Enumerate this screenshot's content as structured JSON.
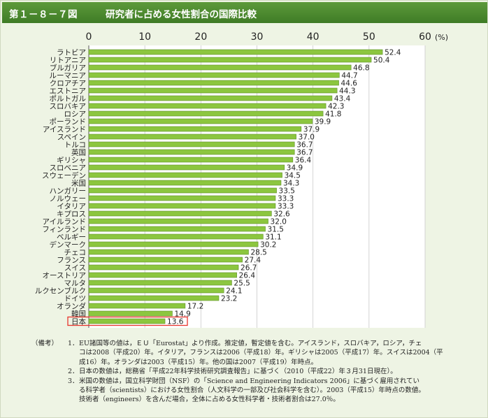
{
  "figure": {
    "number": "第１－８－７図",
    "title": "研究者に占める女性割合の国際比較"
  },
  "chart_data": {
    "type": "bar",
    "orientation": "horizontal",
    "unit_label": "(%)",
    "xlim": [
      0,
      60
    ],
    "ticks": [
      "0",
      "10",
      "20",
      "30",
      "40",
      "50",
      "60"
    ],
    "grid": true,
    "bar_color": "#8cc63f",
    "highlight_color": "#e8352e",
    "highlight_category": "日本",
    "categories": [
      "ラトビア",
      "リトアニア",
      "ブルガリア",
      "ルーマニア",
      "クロアチア",
      "エストニア",
      "ポルトガル",
      "スロバキア",
      "ロシア",
      "ポーランド",
      "アイスランド",
      "スペイン",
      "トルコ",
      "英国",
      "ギリシャ",
      "スロベニア",
      "スウェーデン",
      "米国",
      "ハンガリー",
      "ノルウェー",
      "イタリア",
      "キプロス",
      "アイルランド",
      "フィンランド",
      "ベルギー",
      "デンマーク",
      "チェコ",
      "フランス",
      "スイス",
      "オーストリア",
      "マルタ",
      "ルクセンブルク",
      "ドイツ",
      "オランダ",
      "韓国",
      "日本"
    ],
    "values": [
      52.4,
      50.4,
      46.8,
      44.7,
      44.6,
      44.3,
      43.4,
      42.3,
      41.8,
      39.9,
      37.9,
      37.0,
      36.7,
      36.7,
      36.4,
      34.9,
      34.5,
      34.3,
      33.5,
      33.3,
      33.3,
      32.6,
      32.0,
      31.5,
      31.1,
      30.2,
      28.5,
      27.4,
      26.7,
      26.4,
      25.5,
      24.1,
      23.2,
      17.2,
      14.9,
      13.6
    ],
    "value_labels": [
      "52.4",
      "50.4",
      "46.8",
      "44.7",
      "44.6",
      "44.3",
      "43.4",
      "42.3",
      "41.8",
      "39.9",
      "37.9",
      "37.0",
      "36.7",
      "36.7",
      "36.4",
      "34.9",
      "34.5",
      "34.3",
      "33.5",
      "33.3",
      "33.3",
      "32.6",
      "32.0",
      "31.5",
      "31.1",
      "30.2",
      "28.5",
      "27.4",
      "26.7",
      "26.4",
      "25.5",
      "24.1",
      "23.2",
      "17.2",
      "14.9",
      "13.6"
    ]
  },
  "notes": {
    "heading": "（備考）",
    "items": [
      {
        "num": "1．",
        "lines": [
          "EU諸国等の値は，ＥＵ「Eurostat」より作成。推定値，暫定値を含む。アイスランド，スロバキア，ロシア，チェ",
          "コは2008（平成20）年。イタリア，フランスは2006（平成18）年。ギリシャは2005（平成17）年。スイスは2004（平",
          "成16）年。オランダは2003（平成15）年。他の国は2007（平成19）年時点。"
        ]
      },
      {
        "num": "2．",
        "lines": [
          "日本の数値は，総務省「平成22年科学技術研究調査報告」に基づく（2010（平成22）年３月31日現在）。"
        ]
      },
      {
        "num": "3．",
        "lines": [
          "米国の数値は，国立科学財団（NSF）の「Science and Engineering Indicators 2006」に基づく雇用されてい",
          "る科学者（scientists）における女性割合（人文科学の一部及び社会科学を含む）。2003（平成15）年時点の数値。",
          "技術者（engineers）を含んだ場合，全体に占める女性科学者・技術者割合は27.0％。"
        ]
      }
    ]
  }
}
